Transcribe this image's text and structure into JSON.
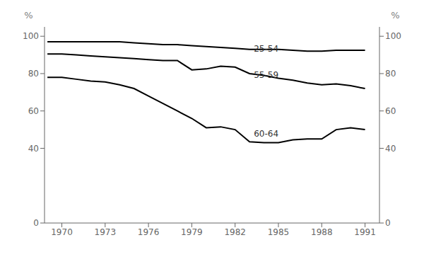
{
  "chart_data": {
    "type": "line",
    "x": [
      1969,
      1970,
      1971,
      1972,
      1973,
      1974,
      1975,
      1976,
      1977,
      1978,
      1979,
      1980,
      1981,
      1982,
      1983,
      1984,
      1985,
      1986,
      1987,
      1988,
      1989,
      1990,
      1991
    ],
    "series": [
      {
        "color": "#000000",
        "values": [
          97.0,
          97.0,
          97.0,
          97.0,
          97.0,
          97.0,
          96.5,
          96.0,
          95.5,
          95.5,
          95.0,
          94.5,
          94.0,
          93.5,
          93.0,
          93.0,
          93.0,
          92.5,
          92.0,
          92.0,
          92.5,
          92.5,
          92.5
        ]
      },
      {
        "color": "#000000",
        "values": [
          90.5,
          90.5,
          90.0,
          89.5,
          89.0,
          88.5,
          88.0,
          87.5,
          87.0,
          87.0,
          82.0,
          82.5,
          84.0,
          83.5,
          80.0,
          79.0,
          77.5,
          76.5,
          75.0,
          74.0,
          74.5,
          73.5,
          72.0
        ]
      },
      {
        "color": "#000000",
        "values": [
          78.0,
          78.0,
          77.0,
          76.0,
          75.5,
          74.0,
          72.0,
          68.0,
          64.0,
          60.0,
          56.0,
          51.0,
          51.5,
          50.0,
          43.5,
          43.0,
          43.0,
          44.5,
          45.0,
          45.0,
          50.0,
          51.0,
          50.0
        ]
      }
    ],
    "annotations": [
      {
        "text": "25-54",
        "x": 1983.2,
        "y": 93.5
      },
      {
        "text": "55-59",
        "x": 1983.2,
        "y": 79.5
      },
      {
        "text": "60-64",
        "x": 1983.2,
        "y": 48.0
      }
    ],
    "xlim": [
      1968.8,
      1992.0
    ],
    "xticks": [
      1970,
      1973,
      1976,
      1979,
      1982,
      1985,
      1988,
      1991
    ],
    "ylim": [
      0,
      105
    ],
    "yticks": [
      0,
      40,
      60,
      80,
      100
    ],
    "y2lim": [
      0,
      105
    ],
    "y2ticks": [
      0,
      40,
      60,
      80,
      100
    ],
    "ylabel": "%",
    "y2label": "%"
  }
}
